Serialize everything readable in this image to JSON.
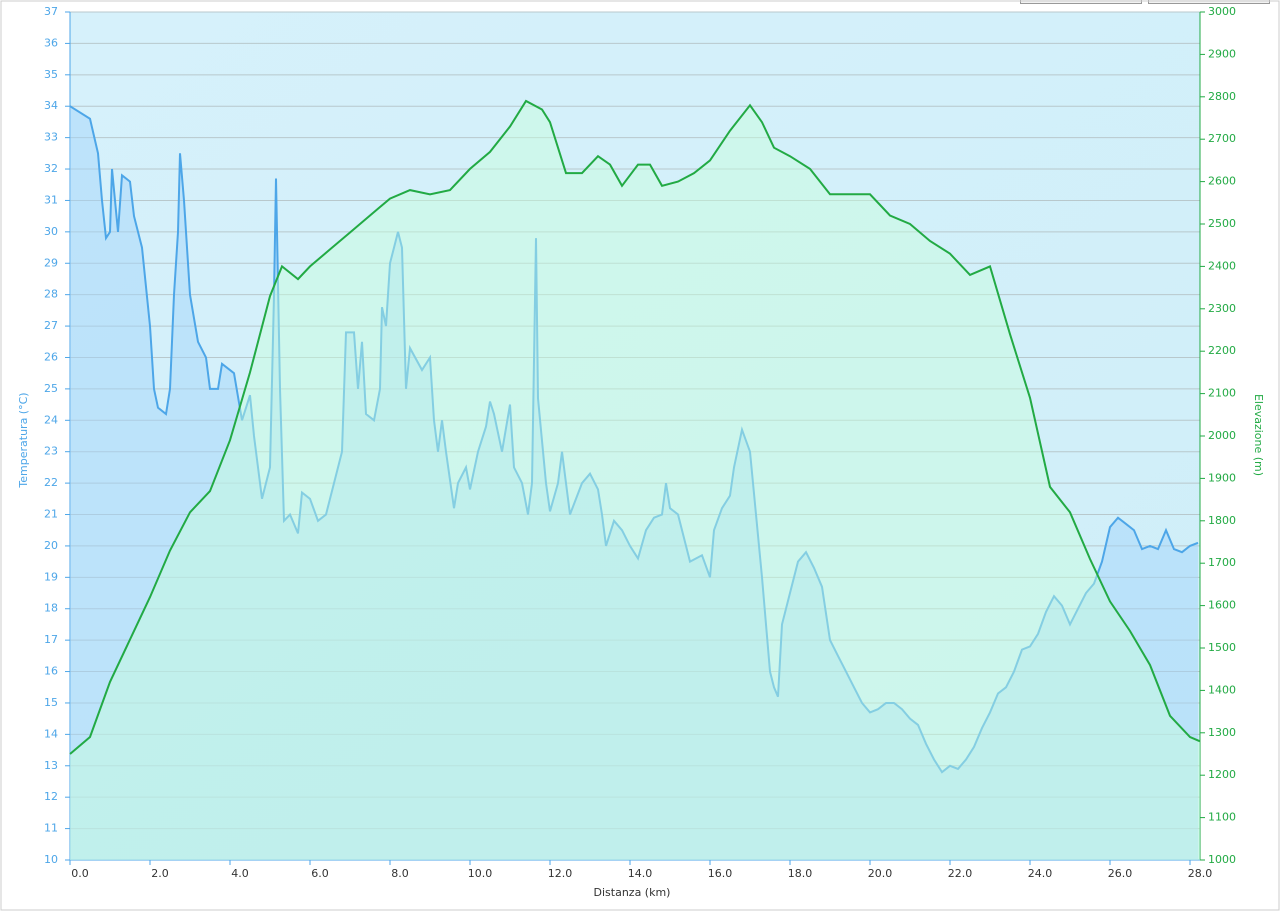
{
  "chart_data": {
    "type": "line",
    "xlabel": "Distanza  (km)",
    "ylabel": "Temperatura (°C)",
    "y2label": "Elevazione (m)",
    "xlim": [
      0,
      28.25
    ],
    "xticks": [
      {
        "value": 0,
        "label": "0.0"
      },
      {
        "value": 2,
        "label": "2.0"
      },
      {
        "value": 4,
        "label": "4.0"
      },
      {
        "value": 6,
        "label": "6.0"
      },
      {
        "value": 8,
        "label": "8.0"
      },
      {
        "value": 10,
        "label": "10.0"
      },
      {
        "value": 12,
        "label": "12.0"
      },
      {
        "value": 14,
        "label": "14.0"
      },
      {
        "value": 16,
        "label": "16.0"
      },
      {
        "value": 18,
        "label": "18.0"
      },
      {
        "value": 20,
        "label": "20.0"
      },
      {
        "value": 22,
        "label": "22.0"
      },
      {
        "value": 24,
        "label": "24.0"
      },
      {
        "value": 26,
        "label": "26.0"
      },
      {
        "value": 28,
        "label": "28.0"
      }
    ],
    "ylim": [
      10,
      37
    ],
    "yticks": [
      10,
      11,
      12,
      13,
      14,
      15,
      16,
      17,
      18,
      19,
      20,
      21,
      22,
      23,
      24,
      25,
      26,
      27,
      28,
      29,
      30,
      31,
      32,
      33,
      34,
      35,
      36,
      37
    ],
    "y2lim": [
      1000,
      3000
    ],
    "y2ticks": [
      1000,
      1100,
      1200,
      1300,
      1400,
      1500,
      1600,
      1700,
      1800,
      1900,
      2000,
      2100,
      2200,
      2300,
      2400,
      2500,
      2600,
      2700,
      2800,
      2900,
      3000
    ],
    "grid": true,
    "series": [
      {
        "color": "#4da6e8",
        "axis": "y",
        "x": [
          0,
          0.5,
          0.7,
          0.8,
          0.9,
          1.0,
          1.05,
          1.2,
          1.3,
          1.5,
          1.6,
          1.8,
          2.0,
          2.1,
          2.2,
          2.4,
          2.5,
          2.6,
          2.7,
          2.75,
          2.85,
          3.0,
          3.2,
          3.4,
          3.5,
          3.7,
          3.8,
          4.1,
          4.3,
          4.5,
          4.6,
          4.8,
          5.0,
          5.1,
          5.15,
          5.25,
          5.35,
          5.5,
          5.7,
          5.8,
          6.0,
          6.2,
          6.4,
          6.6,
          6.8,
          6.9,
          7.1,
          7.2,
          7.3,
          7.4,
          7.6,
          7.75,
          7.8,
          7.9,
          8.0,
          8.1,
          8.2,
          8.3,
          8.4,
          8.5,
          8.8,
          9.0,
          9.1,
          9.2,
          9.3,
          9.4,
          9.6,
          9.7,
          9.9,
          10.0,
          10.2,
          10.4,
          10.5,
          10.6,
          10.8,
          11.0,
          11.1,
          11.3,
          11.45,
          11.55,
          11.65,
          11.7,
          11.9,
          12.0,
          12.2,
          12.3,
          12.5,
          12.8,
          13.0,
          13.2,
          13.3,
          13.4,
          13.6,
          13.8,
          14.0,
          14.2,
          14.4,
          14.6,
          14.8,
          14.9,
          15.0,
          15.2,
          15.4,
          15.5,
          15.8,
          16.0,
          16.1,
          16.3,
          16.5,
          16.6,
          16.8,
          17.0,
          17.15,
          17.3,
          17.5,
          17.6,
          17.7,
          17.8,
          18.0,
          18.2,
          18.4,
          18.6,
          18.8,
          19.0,
          19.2,
          19.4,
          19.6,
          19.8,
          20.0,
          20.2,
          20.4,
          20.6,
          20.8,
          21.0,
          21.2,
          21.4,
          21.6,
          21.8,
          22.0,
          22.2,
          22.4,
          22.6,
          22.8,
          23.0,
          23.2,
          23.4,
          23.6,
          23.8,
          24.0,
          24.2,
          24.4,
          24.6,
          24.8,
          25.0,
          25.2,
          25.4,
          25.6,
          25.8,
          26.0,
          26.2,
          26.4,
          26.6,
          26.8,
          27.0,
          27.2,
          27.4,
          27.6,
          27.8,
          28.0,
          28.2
        ],
        "values": [
          34,
          33.6,
          32.5,
          31,
          29.8,
          30,
          32,
          30,
          31.8,
          31.6,
          30.5,
          29.5,
          27,
          25,
          24.4,
          24.2,
          25,
          28,
          30,
          32.5,
          31,
          28,
          26.5,
          26,
          25,
          25,
          25.8,
          25.5,
          24,
          24.8,
          23.5,
          21.5,
          22.5,
          28,
          31.7,
          25,
          20.8,
          21,
          20.4,
          21.7,
          21.5,
          20.8,
          21,
          22,
          23,
          26.8,
          26.8,
          25,
          26.5,
          24.2,
          24,
          25,
          27.6,
          27,
          29,
          29.5,
          30,
          29.5,
          25,
          26.3,
          25.6,
          26,
          24,
          23,
          24,
          23,
          21.2,
          22,
          22.5,
          21.8,
          23,
          23.8,
          24.6,
          24.2,
          23,
          24.5,
          22.5,
          22,
          21,
          22,
          29.8,
          24.7,
          22,
          21.1,
          22,
          23,
          21,
          22,
          22.3,
          21.8,
          21,
          20,
          20.8,
          20.5,
          20,
          19.6,
          20.5,
          20.9,
          21,
          22,
          21.2,
          21,
          20,
          19.5,
          19.7,
          19,
          20.5,
          21.2,
          21.6,
          22.5,
          23.7,
          23,
          21,
          19,
          16,
          15.5,
          15.2,
          17.5,
          18.5,
          19.5,
          19.8,
          19.3,
          18.7,
          17,
          16.5,
          16,
          15.5,
          15,
          14.7,
          14.8,
          15,
          15,
          14.8,
          14.5,
          14.3,
          13.7,
          13.2,
          12.8,
          13,
          12.9,
          13.2,
          13.6,
          14.2,
          14.7,
          15.3,
          15.5,
          16,
          16.7,
          16.8,
          17.2,
          17.9,
          18.4,
          18.1,
          17.5,
          18,
          18.5,
          18.8,
          19.5,
          20.6,
          20.9,
          20.7,
          20.5,
          19.9,
          20,
          19.9,
          20.5,
          19.9,
          19.8,
          20,
          20.1
        ]
      },
      {
        "color": "#22aa44",
        "axis": "y2",
        "x": [
          0,
          0.5,
          1.0,
          1.5,
          2.0,
          2.5,
          3.0,
          3.5,
          4.0,
          4.5,
          5.0,
          5.3,
          5.7,
          6.0,
          6.5,
          7.0,
          7.5,
          8.0,
          8.5,
          9.0,
          9.5,
          10.0,
          10.5,
          11.0,
          11.4,
          11.8,
          12.0,
          12.4,
          12.8,
          13.2,
          13.5,
          13.8,
          14.2,
          14.5,
          14.8,
          15.2,
          15.6,
          16.0,
          16.5,
          17.0,
          17.3,
          17.6,
          18.0,
          18.5,
          19.0,
          19.5,
          20.0,
          20.5,
          21.0,
          21.5,
          22.0,
          22.5,
          23.0,
          23.5,
          24.0,
          24.5,
          25.0,
          25.5,
          26.0,
          26.5,
          27.0,
          27.5,
          28.0,
          28.25
        ],
        "values": [
          1250,
          1290,
          1420,
          1520,
          1620,
          1730,
          1820,
          1870,
          1990,
          2150,
          2330,
          2400,
          2370,
          2400,
          2440,
          2480,
          2520,
          2560,
          2580,
          2570,
          2580,
          2630,
          2670,
          2730,
          2790,
          2770,
          2740,
          2620,
          2620,
          2660,
          2640,
          2590,
          2640,
          2640,
          2590,
          2600,
          2620,
          2650,
          2720,
          2780,
          2740,
          2680,
          2660,
          2630,
          2570,
          2570,
          2570,
          2520,
          2500,
          2460,
          2430,
          2380,
          2400,
          2240,
          2090,
          1880,
          1820,
          1710,
          1610,
          1540,
          1460,
          1340,
          1290,
          1280
        ]
      }
    ]
  }
}
